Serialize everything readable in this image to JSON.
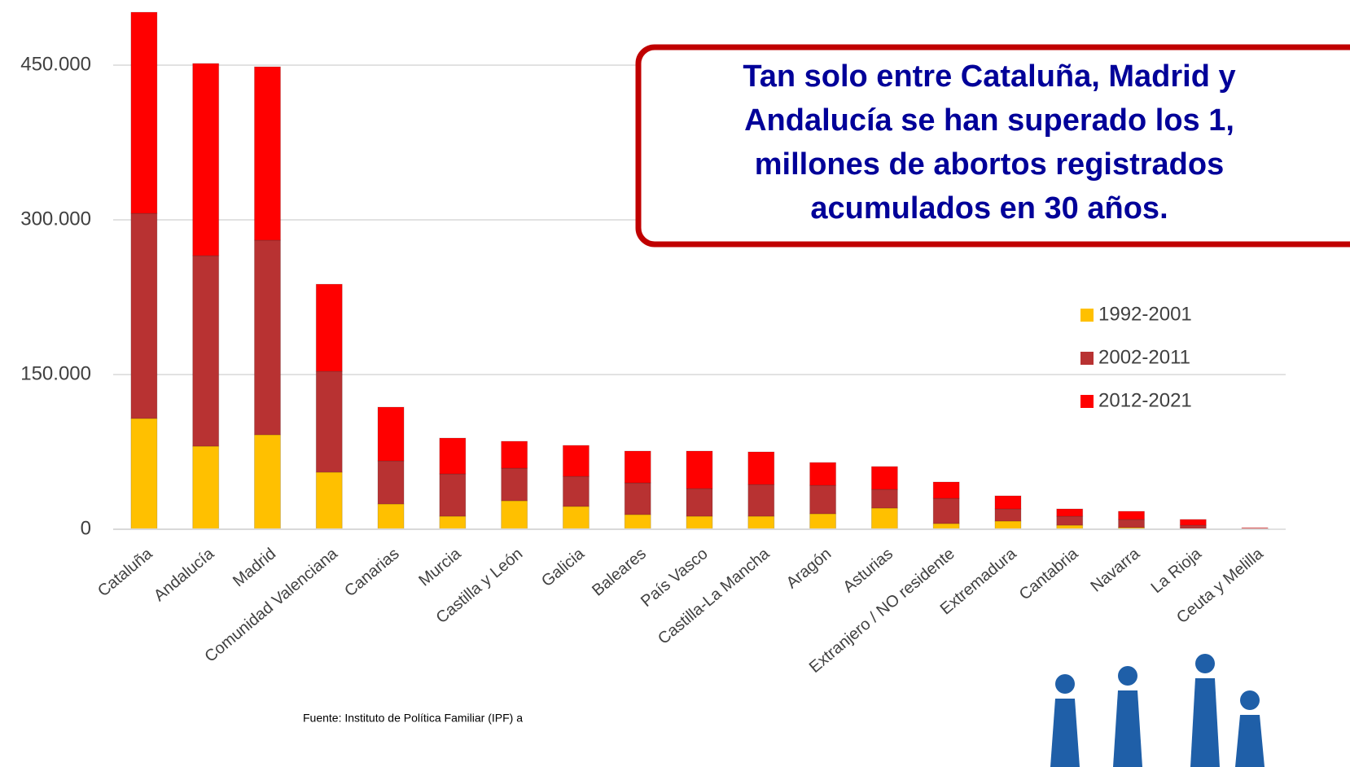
{
  "chart_data": {
    "type": "stacked_bar",
    "categories": [
      "Cataluña",
      "Andalucía",
      "Madrid",
      "Comunidad Valenciana",
      "Canarias",
      "Murcia",
      "Castilla y León",
      "Galicia",
      "Baleares",
      "País Vasco",
      "Castilla-La Mancha",
      "Aragón",
      "Asturias",
      "Extranjero / NO residente",
      "Extremadura",
      "Cantabria",
      "Navarra",
      "La Rioja",
      "Ceuta y Melilla"
    ],
    "series": [
      {
        "name": "1992-2001",
        "color": "#ffc000",
        "values": [
          107400,
          80500,
          91600,
          55300,
          24500,
          12600,
          27600,
          22100,
          14200,
          12600,
          12600,
          15000,
          20500,
          5500,
          7900,
          3900,
          1600,
          800,
          300
        ]
      },
      {
        "name": "2002-2011",
        "color": "#b83232",
        "values": [
          198900,
          184800,
          188700,
          97900,
          41800,
          41100,
          31600,
          29200,
          30800,
          26900,
          30800,
          27600,
          18200,
          24500,
          11800,
          8700,
          7900,
          3100,
          500
        ]
      },
      {
        "name": "2012-2021",
        "color": "#ff0000",
        "values": [
          195000,
          186300,
          168100,
          84400,
          52100,
          34700,
          26100,
          30000,
          30800,
          36300,
          31600,
          22100,
          22100,
          15800,
          12700,
          7100,
          7900,
          5600,
          500
        ]
      }
    ],
    "ylim": [
      0,
      510000
    ],
    "yticks": [
      0,
      {
        "value": 150000,
        "label": "150.000"
      },
      {
        "value": 300000,
        "label": "300.000"
      },
      {
        "value": 450000,
        "label": "450.000"
      }
    ],
    "grid": true,
    "legend": "right",
    "annotation": [
      "Tan solo entre Cataluña, Madrid y",
      "Andalucía se han superado los 1,",
      "millones de abortos registrados",
      "acumulados en 30 años."
    ],
    "source": "Fuente: Instituto de Política Familiar (IPF) a"
  }
}
